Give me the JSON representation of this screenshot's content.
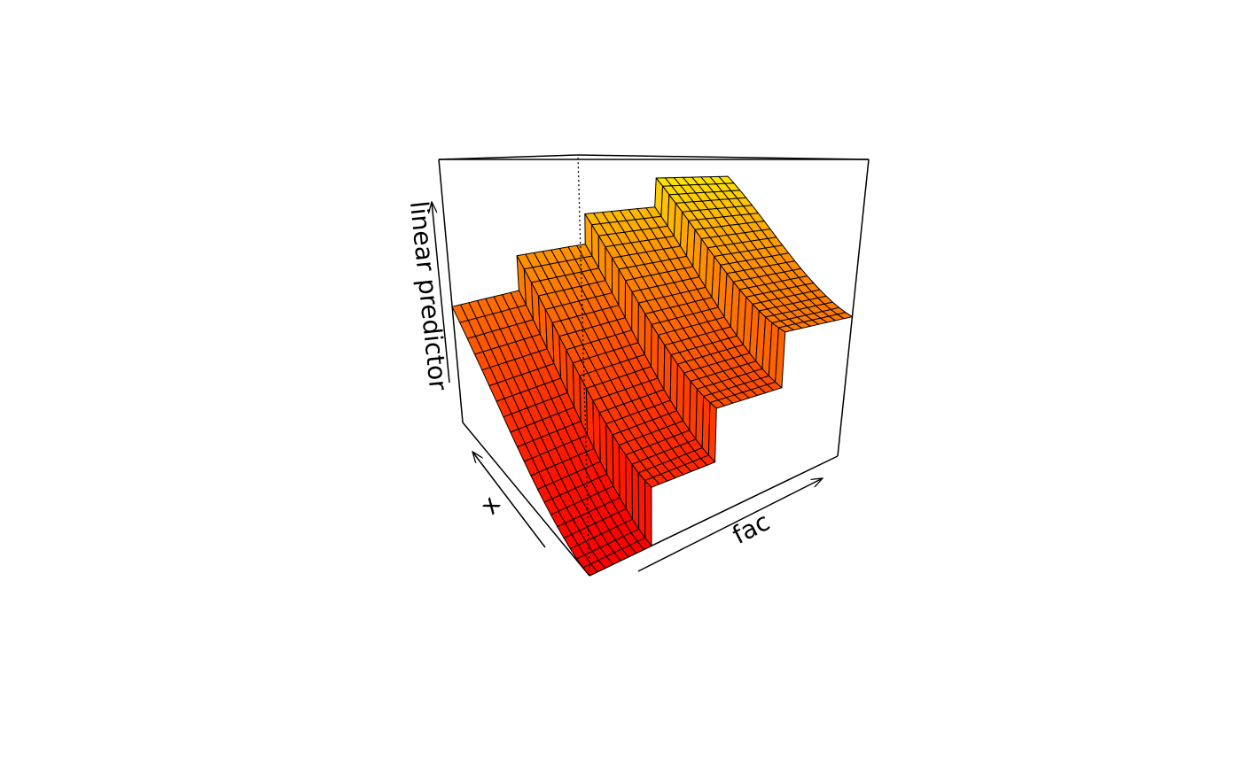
{
  "chart_data": {
    "type": "surface",
    "xlabel": "x",
    "ylabel": "fac",
    "zlabel": "linear predictor",
    "xlim": [
      0,
      1
    ],
    "zlim": [
      0,
      1
    ],
    "x": [
      0,
      0.05,
      0.1,
      0.15,
      0.2,
      0.25,
      0.3,
      0.35,
      0.4,
      0.45,
      0.5,
      0.55,
      0.6,
      0.65,
      0.7,
      0.75,
      0.8,
      0.85,
      0.9,
      0.95,
      1
    ],
    "series": [
      {
        "values": [
          0,
          0.001,
          0.004,
          0.01,
          0.018,
          0.028,
          0.04,
          0.054,
          0.07,
          0.089,
          0.11,
          0.133,
          0.158,
          0.186,
          0.216,
          0.248,
          0.282,
          0.318,
          0.356,
          0.397,
          0.44
        ]
      },
      {
        "values": [
          0.15,
          0.151,
          0.154,
          0.16,
          0.168,
          0.178,
          0.19,
          0.204,
          0.22,
          0.239,
          0.26,
          0.283,
          0.308,
          0.336,
          0.366,
          0.398,
          0.432,
          0.468,
          0.506,
          0.547,
          0.59
        ]
      },
      {
        "values": [
          0.3,
          0.301,
          0.304,
          0.31,
          0.318,
          0.328,
          0.34,
          0.354,
          0.37,
          0.389,
          0.41,
          0.433,
          0.458,
          0.486,
          0.516,
          0.548,
          0.582,
          0.618,
          0.656,
          0.697,
          0.74
        ]
      },
      {
        "values": [
          0.47,
          0.471,
          0.474,
          0.48,
          0.488,
          0.498,
          0.51,
          0.524,
          0.54,
          0.559,
          0.58,
          0.603,
          0.628,
          0.656,
          0.686,
          0.718,
          0.752,
          0.788,
          0.826,
          0.867,
          0.91
        ]
      }
    ],
    "colors": [
      "#ff0000",
      "#ffff00"
    ]
  }
}
